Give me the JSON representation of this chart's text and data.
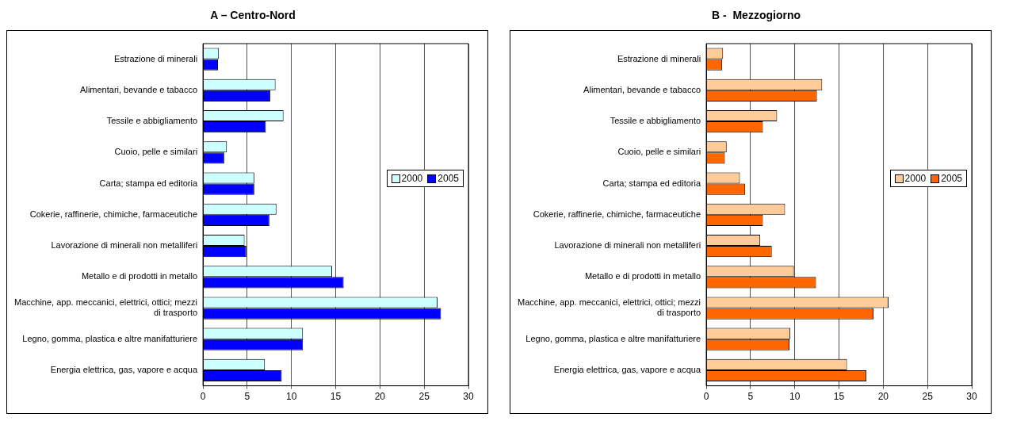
{
  "chart_data": [
    {
      "type": "bar",
      "orientation": "horizontal",
      "title": "A – Centro-Nord",
      "categories": [
        "Estrazione di minerali",
        "Alimentari, bevande e tabacco",
        "Tessile e abbigliamento",
        "Cuoio, pelle e similari",
        "Carta; stampa ed editoria",
        "Cokerie, raffinerie, chimiche, farmaceutiche",
        "Lavorazione di minerali non metalliferi",
        "Metallo e di prodotti in metallo",
        "Macchine, app. meccanici, elettrici, ottici; mezzi di trasporto",
        "Legno, gomma, plastica e altre manifatturiere",
        "Energia elettrica, gas, vapore e acqua"
      ],
      "series": [
        {
          "name": "2000",
          "color": "#ccffff",
          "values": [
            1.8,
            8.2,
            9.1,
            2.7,
            5.8,
            8.3,
            4.7,
            14.6,
            26.5,
            11.3,
            7.0
          ]
        },
        {
          "name": "2005",
          "color": "#0000ff",
          "values": [
            1.7,
            7.6,
            7.1,
            2.4,
            5.8,
            7.5,
            4.9,
            15.9,
            26.9,
            11.3,
            8.9
          ]
        }
      ],
      "xlim": [
        0,
        30
      ],
      "xticks": [
        0,
        5,
        10,
        15,
        20,
        25,
        30
      ],
      "grid": "x",
      "legend": "right"
    },
    {
      "type": "bar",
      "orientation": "horizontal",
      "title": "B -  Mezzogiorno",
      "categories": [
        "Estrazione di minerali",
        "Alimentari, bevande e tabacco",
        "Tessile e abbigliamento",
        "Cuoio, pelle e similari",
        "Carta; stampa ed editoria",
        "Cokerie, raffinerie, chimiche, farmaceutiche",
        "Lavorazione di minerali non metalliferi",
        "Metallo e di prodotti in metallo",
        "Macchine, app. meccanici, elettrici, ottici; mezzi di trasporto",
        "Legno, gomma, plastica e altre manifatturiere",
        "Energia elettrica, gas, vapore e acqua"
      ],
      "series": [
        {
          "name": "2000",
          "color": "#ffcc99",
          "values": [
            1.9,
            13.1,
            8.0,
            2.3,
            3.8,
            8.9,
            6.1,
            9.9,
            20.6,
            9.5,
            15.9
          ]
        },
        {
          "name": "2005",
          "color": "#ff6600",
          "values": [
            1.8,
            12.5,
            6.4,
            2.1,
            4.4,
            6.4,
            7.4,
            12.4,
            18.9,
            9.4,
            18.1
          ]
        }
      ],
      "xlim": [
        0,
        30
      ],
      "xticks": [
        0,
        5,
        10,
        15,
        20,
        25,
        30
      ],
      "grid": "x",
      "legend": "right"
    }
  ]
}
